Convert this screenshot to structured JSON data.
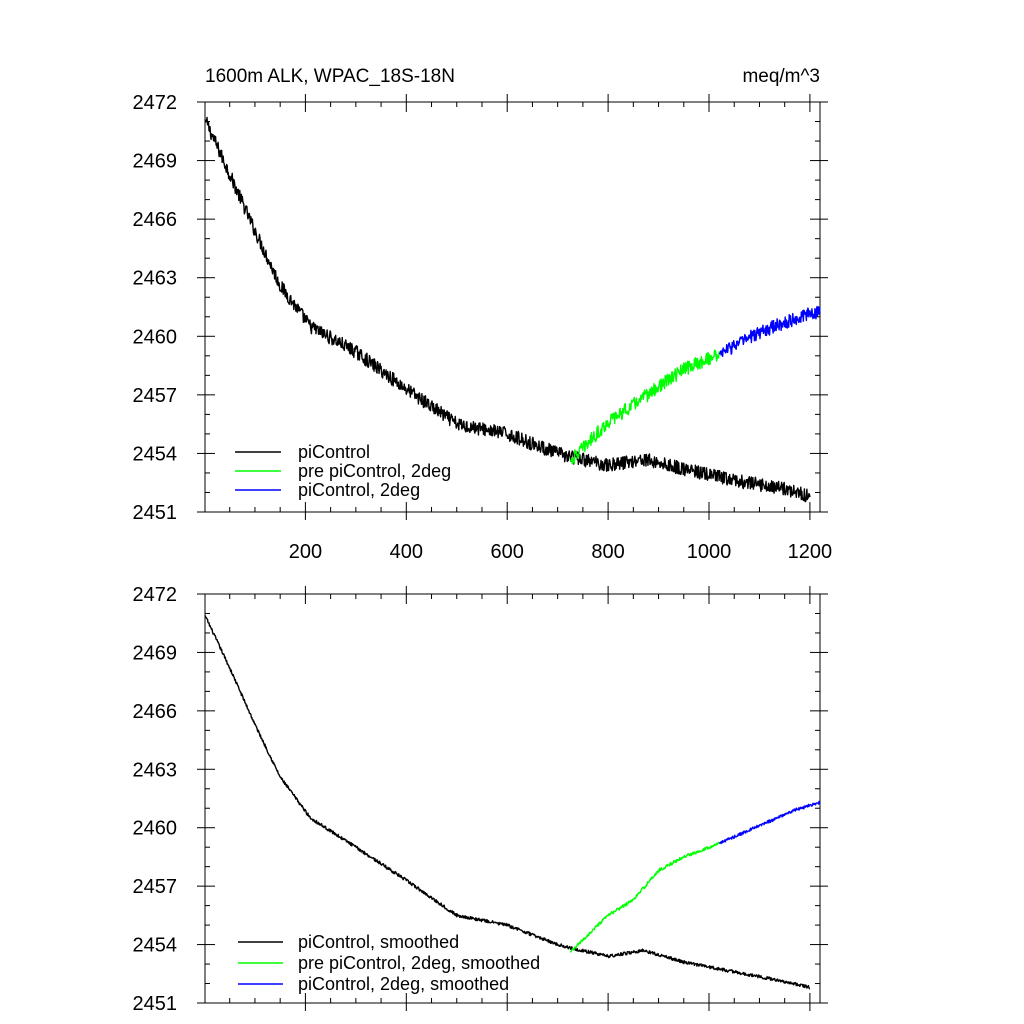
{
  "chart_data": [
    {
      "type": "line",
      "title": "1600m ALK, WPAC_18S-18N",
      "units": "meq/m^3",
      "xlim": [
        1,
        1220
      ],
      "ylim": [
        2451,
        2472
      ],
      "xticks": [
        200,
        400,
        600,
        800,
        1000,
        1200
      ],
      "xtick_labels": [
        "200",
        "400",
        "600",
        "800",
        "1000",
        "1200"
      ],
      "yticks": [
        2451,
        2454,
        2457,
        2460,
        2463,
        2466,
        2469,
        2472
      ],
      "ytick_labels": [
        "2451",
        "2454",
        "2457",
        "2460",
        "2463",
        "2466",
        "2469",
        "2472"
      ],
      "legend_position": "bottom-left",
      "series": [
        {
          "name": "piControl",
          "color": "#000000",
          "noise": 0.35,
          "points": [
            [
              1,
              2471.1
            ],
            [
              50,
              2468.3
            ],
            [
              100,
              2465.4
            ],
            [
              150,
              2462.6
            ],
            [
              210,
              2460.5
            ],
            [
              300,
              2459.2
            ],
            [
              400,
              2457.3
            ],
            [
              500,
              2455.5
            ],
            [
              600,
              2455.0
            ],
            [
              700,
              2454.0
            ],
            [
              730,
              2453.8
            ],
            [
              800,
              2453.4
            ],
            [
              870,
              2453.7
            ],
            [
              950,
              2453.2
            ],
            [
              1050,
              2452.6
            ],
            [
              1150,
              2452.2
            ],
            [
              1200,
              2451.8
            ]
          ]
        },
        {
          "name": "pre piControl, 2deg",
          "color": "#00ff00",
          "noise": 0.35,
          "points": [
            [
              725,
              2453.6
            ],
            [
              800,
              2455.6
            ],
            [
              900,
              2457.4
            ],
            [
              950,
              2458.3
            ],
            [
              1020,
              2459.1
            ]
          ]
        },
        {
          "name": "piControl, 2deg",
          "color": "#0000ff",
          "noise": 0.35,
          "points": [
            [
              1020,
              2459.1
            ],
            [
              1100,
              2460.2
            ],
            [
              1170,
              2460.9
            ],
            [
              1220,
              2461.3
            ]
          ]
        }
      ]
    },
    {
      "type": "line",
      "title": "",
      "units": "",
      "xlim": [
        1,
        1220
      ],
      "ylim": [
        2451,
        2472
      ],
      "xticks": [
        200,
        400,
        600,
        800,
        1000,
        1200
      ],
      "yticks": [
        2451,
        2454,
        2457,
        2460,
        2463,
        2466,
        2469,
        2472
      ],
      "ytick_labels": [
        "2451",
        "2454",
        "2457",
        "2460",
        "2463",
        "2466",
        "2469",
        "2472"
      ],
      "legend_position": "bottom-left",
      "series": [
        {
          "name": "piControl, smoothed",
          "color": "#000000",
          "noise": 0.08,
          "points": [
            [
              1,
              2470.9
            ],
            [
              50,
              2468.2
            ],
            [
              100,
              2465.3
            ],
            [
              150,
              2462.6
            ],
            [
              210,
              2460.5
            ],
            [
              300,
              2459.0
            ],
            [
              400,
              2457.3
            ],
            [
              500,
              2455.5
            ],
            [
              600,
              2455.0
            ],
            [
              700,
              2454.0
            ],
            [
              730,
              2453.8
            ],
            [
              800,
              2453.4
            ],
            [
              870,
              2453.7
            ],
            [
              950,
              2453.1
            ],
            [
              1050,
              2452.6
            ],
            [
              1150,
              2452.1
            ],
            [
              1200,
              2451.8
            ]
          ]
        },
        {
          "name": "pre piControl, 2deg, smoothed",
          "color": "#00ff00",
          "noise": 0.08,
          "points": [
            [
              725,
              2453.6
            ],
            [
              800,
              2455.5
            ],
            [
              850,
              2456.3
            ],
            [
              900,
              2457.8
            ],
            [
              950,
              2458.5
            ],
            [
              1020,
              2459.2
            ]
          ]
        },
        {
          "name": "piControl, 2deg, smoothed",
          "color": "#0000ff",
          "noise": 0.08,
          "points": [
            [
              1020,
              2459.2
            ],
            [
              1100,
              2460.1
            ],
            [
              1170,
              2460.9
            ],
            [
              1220,
              2461.3
            ]
          ]
        }
      ]
    }
  ]
}
